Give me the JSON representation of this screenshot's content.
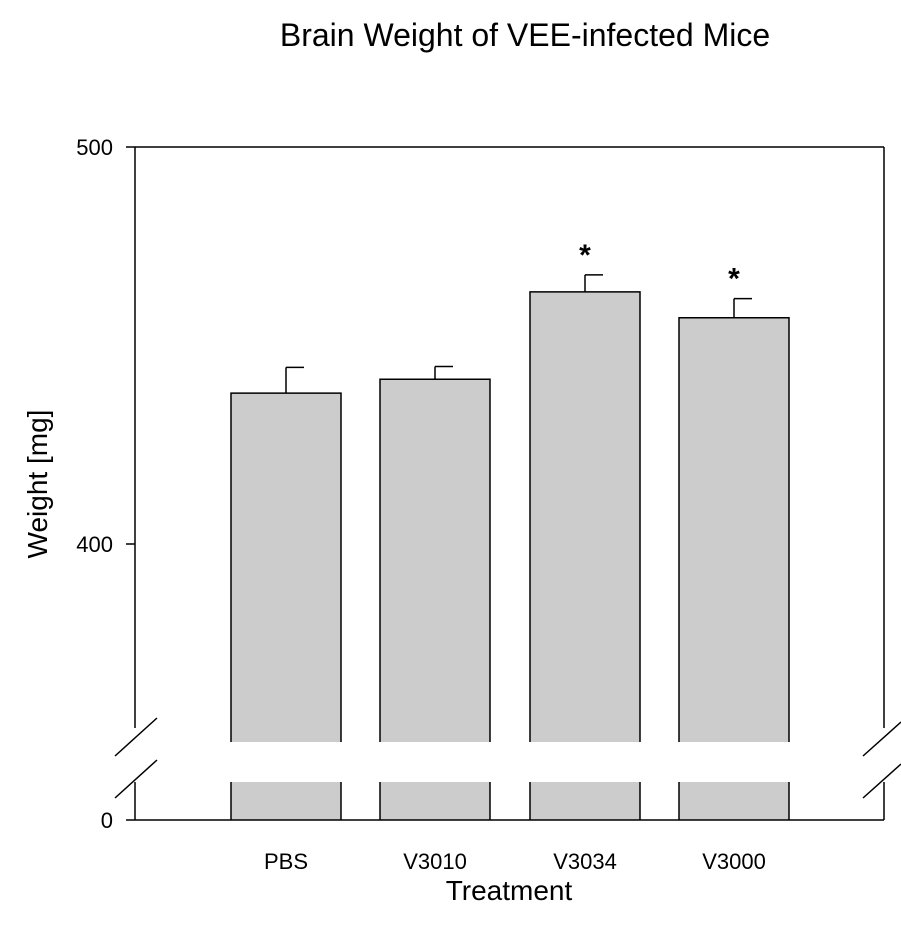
{
  "chart_data": {
    "type": "bar",
    "title": "Brain Weight of VEE-infected Mice",
    "xlabel": "Treatment",
    "ylabel": "Weight [mg]",
    "categories": [
      "PBS",
      "V3010",
      "V3034",
      "V3000"
    ],
    "values": [
      438,
      441.5,
      463.5,
      457
    ],
    "errors": [
      6.5,
      3.2,
      4.3,
      4.8
    ],
    "significance": [
      "",
      "",
      "*",
      "*"
    ],
    "y_ticks": [
      "0",
      "400",
      "500"
    ],
    "y_axis_break": true,
    "lower_segment_range": [
      0,
      10
    ],
    "upper_segment_range": [
      350,
      500
    ],
    "bar_color": "#cccccc",
    "grid": false,
    "legend": "none"
  }
}
